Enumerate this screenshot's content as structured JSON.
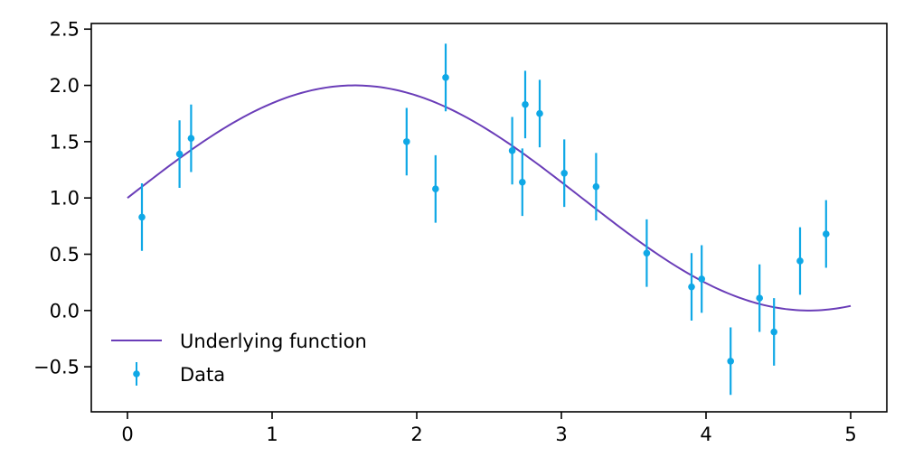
{
  "chart_data": {
    "type": "scatter",
    "title": "",
    "xlabel": "",
    "ylabel": "",
    "xlim": [
      -0.25,
      5.25
    ],
    "ylim": [
      -0.9,
      2.55
    ],
    "xticks": [
      0,
      1,
      2,
      3,
      4,
      5
    ],
    "xtick_labels": [
      "0",
      "1",
      "2",
      "3",
      "4",
      "5"
    ],
    "yticks": [
      -0.5,
      0.0,
      0.5,
      1.0,
      1.5,
      2.0,
      2.5
    ],
    "ytick_labels": [
      "−0.5",
      "0.0",
      "0.5",
      "1.0",
      "1.5",
      "2.0",
      "2.5"
    ],
    "grid": false,
    "legend_position": "lower-left",
    "series": [
      {
        "name": "Underlying function",
        "kind": "line",
        "color": "#6a3db8",
        "function": "1 + sin(x)",
        "x_range": [
          0,
          5
        ]
      },
      {
        "name": "Data",
        "kind": "errorbar",
        "color": "#0fa8e6",
        "x": [
          0.1,
          0.36,
          0.44,
          1.93,
          2.13,
          2.2,
          2.66,
          2.73,
          2.75,
          2.85,
          3.02,
          3.24,
          3.59,
          3.9,
          3.97,
          4.17,
          4.37,
          4.47,
          4.65,
          4.83
        ],
        "y": [
          0.83,
          1.39,
          1.53,
          1.5,
          1.08,
          2.07,
          1.42,
          1.14,
          1.83,
          1.75,
          1.22,
          1.1,
          0.51,
          0.21,
          0.28,
          -0.45,
          0.11,
          -0.19,
          0.44,
          0.68
        ],
        "yerr": 0.3
      }
    ]
  }
}
